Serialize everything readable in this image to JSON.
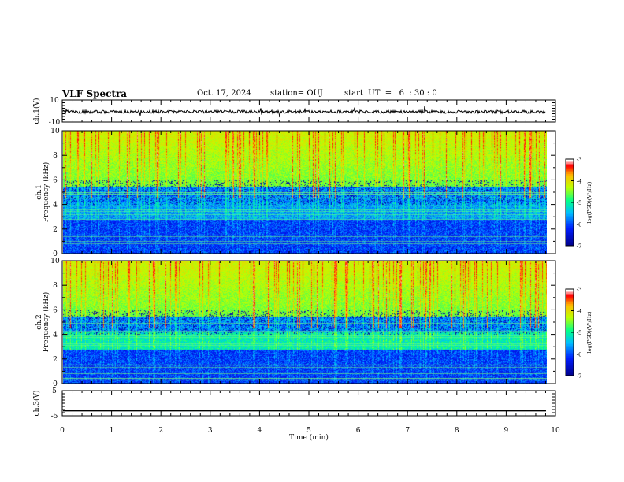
{
  "header": {
    "title": "VLF Spectra",
    "date": "Oct. 17, 2024",
    "station": "station= OUJ",
    "start_ut": "start  UT  =   6  : 30 : 0"
  },
  "chart_data": [
    {
      "type": "line",
      "panel": "ch1-waveform",
      "ylabel": "ch.1(V)",
      "ylim": [
        -10,
        10
      ],
      "y_tick_labels": [
        "-10",
        "10"
      ],
      "xlim": [
        0,
        10
      ],
      "series": [
        {
          "values_description_level": 0,
          "noise_amplitude": 1.2
        }
      ]
    },
    {
      "type": "heatmap",
      "panel": "ch1-spectrogram",
      "ylabel": "ch.1\nFrequency (kHz)",
      "ylabel_line1": "ch.1",
      "ylabel_line2": "Frequency (kHz)",
      "ylim": [
        0,
        10
      ],
      "y_tick_labels": [
        "0",
        "2",
        "4",
        "6",
        "8",
        "10"
      ],
      "xlim": [
        0,
        10
      ],
      "colorbar": {
        "range": [
          -7,
          -3
        ],
        "tick_labels": [
          "-3",
          "-4",
          "-5",
          "-6",
          "-7"
        ],
        "label": "log(PSD)(V²/Hz)",
        "colors": [
          "#00007f",
          "#0000ff",
          "#00bfff",
          "#00ff7f",
          "#bfff00",
          "#ffbf00",
          "#ff0000",
          "#ffffff"
        ]
      }
    },
    {
      "type": "heatmap",
      "panel": "ch2-spectrogram",
      "ylabel": "ch.2\nFrequency (kHz)",
      "ylabel_line1": "ch.2",
      "ylabel_line2": "Frequency (kHz)",
      "ylim": [
        0,
        10
      ],
      "y_tick_labels": [
        "0",
        "2",
        "4",
        "6",
        "8",
        "10"
      ],
      "xlim": [
        0,
        10
      ],
      "colorbar": {
        "range": [
          -7,
          -3
        ],
        "tick_labels": [
          "-3",
          "-4",
          "-5",
          "-6",
          "-7"
        ],
        "label": "log(PSD)(V²/Hz)",
        "colors": [
          "#00007f",
          "#0000ff",
          "#00bfff",
          "#00ff7f",
          "#bfff00",
          "#ffbf00",
          "#ff0000",
          "#ffffff"
        ]
      }
    },
    {
      "type": "line",
      "panel": "ch3-waveform",
      "ylabel": "ch.3(V)",
      "ylim": [
        -5,
        5
      ],
      "y_tick_labels": [
        "-5",
        "5"
      ],
      "xlim": [
        0,
        10
      ],
      "series": [
        {
          "constant_value": -3
        }
      ]
    }
  ],
  "x_axis": {
    "label": "Time  (min)",
    "range": [
      0,
      10
    ],
    "tick_labels": [
      "0",
      "1",
      "2",
      "3",
      "4",
      "5",
      "6",
      "7",
      "8",
      "9",
      "10"
    ]
  }
}
